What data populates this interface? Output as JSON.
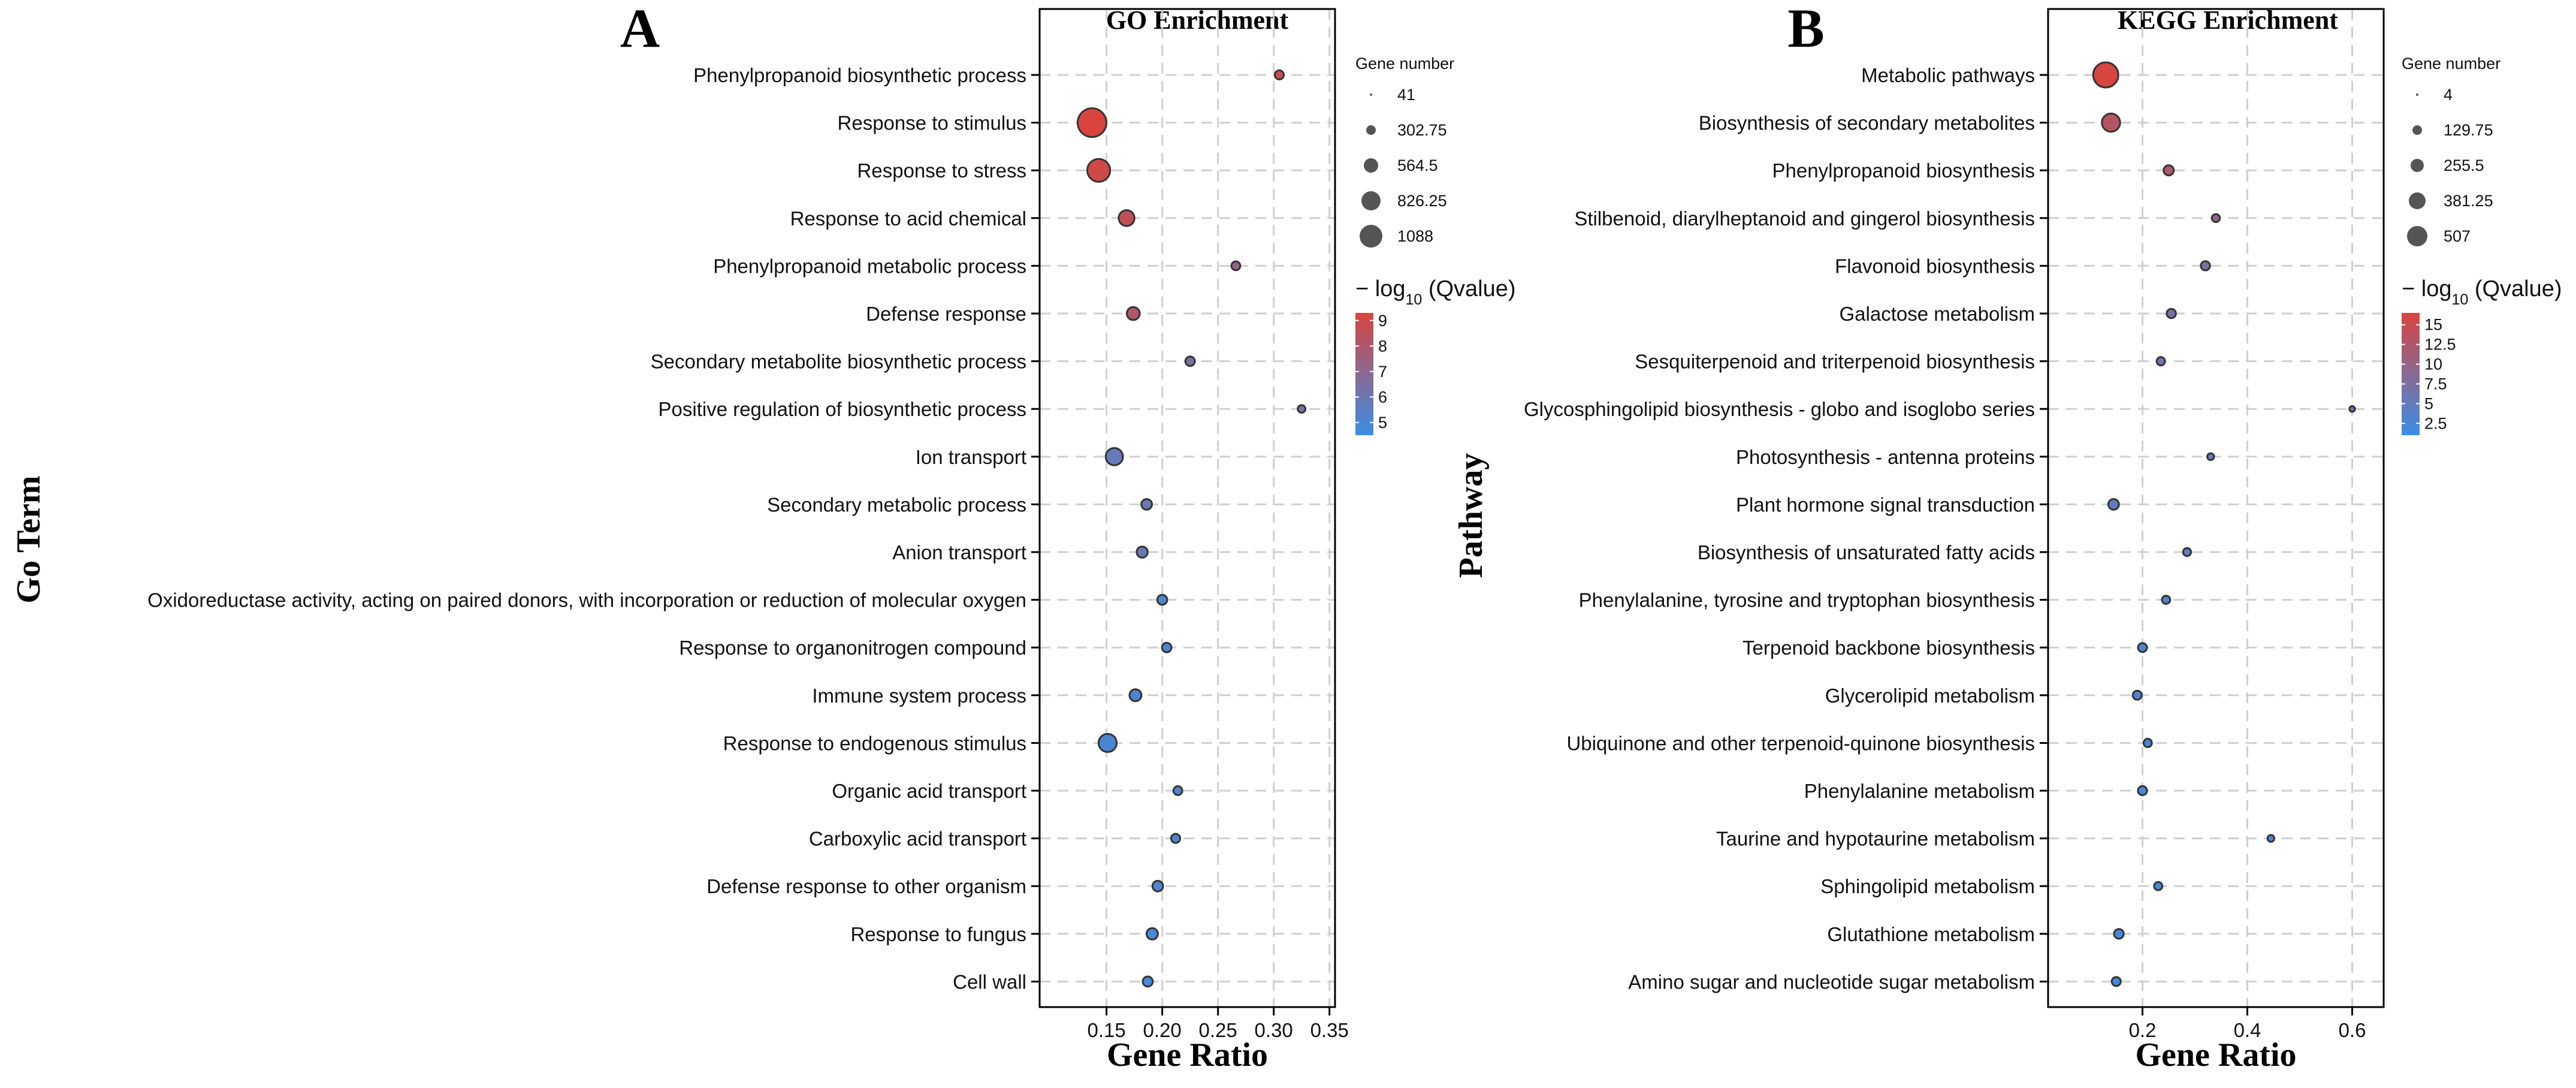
{
  "chart_data": [
    {
      "panel_label": "A",
      "type": "scatter",
      "title": "GO Enrichment",
      "xlabel": "Gene Ratio",
      "ylabel": "Go Term",
      "xlim": [
        0.09,
        0.355
      ],
      "xticks": [
        0.15,
        0.2,
        0.25,
        0.3,
        0.35
      ],
      "xtick_labels": [
        "0.15",
        "0.20",
        "0.25",
        "0.30",
        "0.35"
      ],
      "grid": true,
      "legend_position": "right",
      "size_legend": {
        "title": "Gene number",
        "values": [
          41,
          302.75,
          564.5,
          826.25,
          1088
        ],
        "labels": [
          "41",
          "302.75",
          "564.5",
          "826.25",
          "1088"
        ]
      },
      "color_legend": {
        "title_prefix": "− log",
        "title_sub": "10",
        "title_suffix": " (Qvalue)",
        "min": 4.5,
        "max": 9.3,
        "ticks": [
          9,
          8,
          7,
          6,
          5
        ],
        "tick_labels": [
          "9",
          "8",
          "7",
          "6",
          "5"
        ],
        "low_color": "#3a8ee6",
        "high_color": "#d9443f"
      },
      "size_range": [
        41,
        1088
      ],
      "color_range": [
        4.5,
        9.3
      ],
      "terms": [
        "Phenylpropanoid biosynthetic process",
        "Response to stimulus",
        "Response to stress",
        "Response to acid chemical",
        "Phenylpropanoid metabolic process",
        "Defense response",
        "Secondary metabolite biosynthetic process",
        "Positive regulation of biosynthetic process",
        "Ion transport",
        "Secondary metabolic process",
        "Anion transport",
        "Oxidoreductase activity, acting on paired donors, with incorporation or reduction of molecular oxygen",
        "Response to organonitrogen compound",
        "Immune system process",
        "Response to endogenous stimulus",
        "Organic acid transport",
        "Carboxylic acid transport",
        "Defense response to other organism",
        "Response to fungus",
        "Cell wall"
      ],
      "gene_ratio": [
        0.305,
        0.137,
        0.143,
        0.168,
        0.266,
        0.174,
        0.225,
        0.325,
        0.157,
        0.186,
        0.182,
        0.2,
        0.204,
        0.176,
        0.151,
        0.214,
        0.212,
        0.196,
        0.191,
        0.187
      ],
      "gene_number": [
        100,
        1088,
        680,
        320,
        95,
        210,
        110,
        70,
        380,
        140,
        150,
        120,
        110,
        180,
        420,
        95,
        100,
        140,
        160,
        125
      ],
      "neg_log10_qvalue": [
        8.8,
        9.3,
        9.0,
        8.6,
        7.2,
        8.1,
        6.6,
        6.1,
        5.8,
        6.0,
        5.9,
        5.3,
        5.1,
        5.2,
        5.0,
        5.2,
        5.1,
        5.1,
        4.9,
        4.8
      ]
    },
    {
      "panel_label": "B",
      "type": "scatter",
      "title": "KEGG Enrichment",
      "xlabel": "Gene Ratio",
      "ylabel": "Pathway",
      "xlim": [
        0.02,
        0.66
      ],
      "xticks": [
        0.2,
        0.4,
        0.6
      ],
      "xtick_labels": [
        "0.2",
        "0.4",
        "0.6"
      ],
      "grid": true,
      "legend_position": "right",
      "size_legend": {
        "title": "Gene number",
        "values": [
          4,
          129.75,
          255.5,
          381.25,
          507
        ],
        "labels": [
          "4",
          "129.75",
          "255.5",
          "381.25",
          "507"
        ]
      },
      "color_legend": {
        "title_prefix": "− log",
        "title_sub": "10",
        "title_suffix": " (Qvalue)",
        "min": 1.0,
        "max": 16.5,
        "ticks": [
          15,
          12.5,
          10,
          7.5,
          5,
          2.5
        ],
        "tick_labels": [
          "15",
          "12.5",
          "10",
          "7.5",
          "5",
          "2.5"
        ],
        "low_color": "#3a8ee6",
        "high_color": "#d9443f"
      },
      "size_range": [
        4,
        507
      ],
      "color_range": [
        1.0,
        16.5
      ],
      "terms": [
        "Metabolic pathways",
        "Biosynthesis of secondary metabolites",
        "Phenylpropanoid biosynthesis",
        "Stilbenoid, diarylheptanoid and gingerol biosynthesis",
        "Flavonoid biosynthesis",
        "Galactose metabolism",
        "Sesquiterpenoid and triterpenoid biosynthesis",
        "Glycosphingolipid biosynthesis - globo and isoglobo series",
        "Photosynthesis - antenna proteins",
        "Plant hormone signal transduction",
        "Biosynthesis of unsaturated fatty acids",
        "Phenylalanine, tyrosine and tryptophan biosynthesis",
        "Terpenoid backbone biosynthesis",
        "Glycerolipid metabolism",
        "Ubiquinone and other terpenoid-quinone biosynthesis",
        "Phenylalanine metabolism",
        "Taurine and hypotaurine metabolism",
        "Sphingolipid metabolism",
        "Glutathione metabolism",
        "Amino sugar and nucleotide sugar metabolism"
      ],
      "gene_ratio": [
        0.13,
        0.14,
        0.25,
        0.34,
        0.32,
        0.255,
        0.235,
        0.6,
        0.33,
        0.145,
        0.285,
        0.245,
        0.2,
        0.19,
        0.21,
        0.2,
        0.445,
        0.23,
        0.155,
        0.15
      ],
      "gene_number": [
        507,
        240,
        55,
        28,
        42,
        42,
        32,
        8,
        16,
        62,
        28,
        30,
        38,
        38,
        32,
        40,
        16,
        30,
        48,
        38
      ],
      "neg_log10_qvalue": [
        16.3,
        13.2,
        12.2,
        9.0,
        7.5,
        6.8,
        6.3,
        5.5,
        5.0,
        4.6,
        4.0,
        3.6,
        3.2,
        3.0,
        2.8,
        2.6,
        2.4,
        2.2,
        2.0,
        1.9
      ]
    }
  ]
}
